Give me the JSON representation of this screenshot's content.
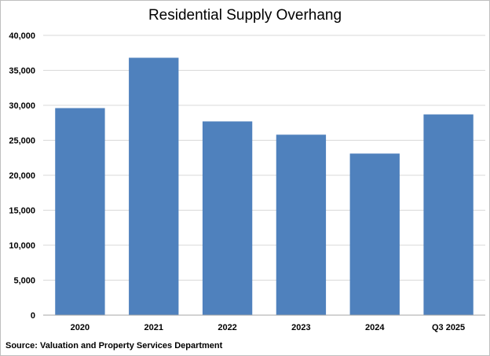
{
  "chart_data": {
    "type": "bar",
    "title": "Residential Supply Overhang",
    "source": "Source: Valuation and Property Services Department",
    "categories": [
      "2020",
      "2021",
      "2022",
      "2023",
      "2024",
      "Q3 2025"
    ],
    "series": [
      {
        "values": [
          29600,
          36800,
          27700,
          25800,
          23100,
          28700
        ]
      }
    ],
    "ylim": [
      0,
      40000
    ],
    "yticks": [
      "0",
      "5,000",
      "10,000",
      "15,000",
      "20,000",
      "25,000",
      "30,000",
      "35,000",
      "40,000"
    ],
    "ytick_values": [
      0,
      5000,
      10000,
      15000,
      20000,
      25000,
      30000,
      35000,
      40000
    ],
    "grid": true,
    "legend": "none",
    "colors": {
      "bar": "#4f81bd",
      "grid": "#d9d9d9",
      "axis": "#a6a6a6"
    }
  }
}
